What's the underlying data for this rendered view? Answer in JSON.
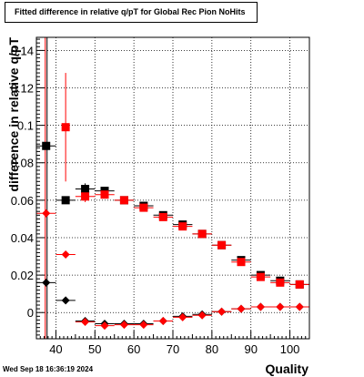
{
  "title": "Fitted difference in relative q/pT for Global Rec Pion NoHits",
  "datestamp": "Wed Sep 18 16:36:19 2024",
  "chart_data": {
    "type": "scatter",
    "title": "Fitted difference in relative q/pT for Global Rec Pion NoHits",
    "xlabel": "Quality",
    "ylabel": "difference in relative q/pT",
    "xlim": [
      35,
      105
    ],
    "ylim": [
      -0.014,
      0.147
    ],
    "x_ticks": [
      40,
      50,
      60,
      70,
      80,
      90,
      100
    ],
    "y_ticks": [
      0,
      0.02,
      0.04,
      0.06,
      0.08,
      0.1,
      0.12,
      0.14
    ],
    "grid": true,
    "series": [
      {
        "marker": "square",
        "color": "#000000",
        "points": [
          {
            "x": 37.5,
            "y": 0.089,
            "xerr": 2.5,
            "yerr": 0.0
          },
          {
            "x": 42.5,
            "y": 0.06,
            "xerr": 2.5,
            "yerr": 0.0
          },
          {
            "x": 47.5,
            "y": 0.066,
            "xerr": 2.5,
            "yerr": 0.003
          },
          {
            "x": 52.5,
            "y": 0.065,
            "xerr": 2.5,
            "yerr": 0.002
          },
          {
            "x": 57.5,
            "y": 0.06,
            "xerr": 2.5,
            "yerr": 0.001
          },
          {
            "x": 62.5,
            "y": 0.057,
            "xerr": 2.5,
            "yerr": 0.001
          },
          {
            "x": 67.5,
            "y": 0.052,
            "xerr": 2.5,
            "yerr": 0.001
          },
          {
            "x": 72.5,
            "y": 0.047,
            "xerr": 2.5,
            "yerr": 0.001
          },
          {
            "x": 77.5,
            "y": 0.042,
            "xerr": 2.5,
            "yerr": 0.001
          },
          {
            "x": 82.5,
            "y": 0.036,
            "xerr": 2.5,
            "yerr": 0.001
          },
          {
            "x": 87.5,
            "y": 0.028,
            "xerr": 2.5,
            "yerr": 0.001
          },
          {
            "x": 92.5,
            "y": 0.02,
            "xerr": 2.5,
            "yerr": 0.001
          },
          {
            "x": 97.5,
            "y": 0.017,
            "xerr": 2.5,
            "yerr": 0.001
          },
          {
            "x": 102.5,
            "y": 0.015,
            "xerr": 2.5,
            "yerr": 0.001
          }
        ]
      },
      {
        "marker": "square",
        "color": "#ff0000",
        "points": [
          {
            "x": 42.5,
            "y": 0.099,
            "xerr": 0.0,
            "yerr": 0.029
          },
          {
            "x": 47.5,
            "y": 0.062,
            "xerr": 2.5,
            "yerr": 0.003
          },
          {
            "x": 52.5,
            "y": 0.063,
            "xerr": 2.5,
            "yerr": 0.002
          },
          {
            "x": 57.5,
            "y": 0.06,
            "xerr": 2.5,
            "yerr": 0.001
          },
          {
            "x": 62.5,
            "y": 0.056,
            "xerr": 2.5,
            "yerr": 0.001
          },
          {
            "x": 67.5,
            "y": 0.051,
            "xerr": 2.5,
            "yerr": 0.001
          },
          {
            "x": 72.5,
            "y": 0.046,
            "xerr": 2.5,
            "yerr": 0.001
          },
          {
            "x": 77.5,
            "y": 0.042,
            "xerr": 2.5,
            "yerr": 0.001
          },
          {
            "x": 82.5,
            "y": 0.036,
            "xerr": 2.5,
            "yerr": 0.001
          },
          {
            "x": 87.5,
            "y": 0.027,
            "xerr": 2.5,
            "yerr": 0.001
          },
          {
            "x": 92.5,
            "y": 0.019,
            "xerr": 2.5,
            "yerr": 0.001
          },
          {
            "x": 97.5,
            "y": 0.016,
            "xerr": 2.5,
            "yerr": 0.001
          },
          {
            "x": 102.5,
            "y": 0.015,
            "xerr": 2.5,
            "yerr": 0.001
          }
        ]
      },
      {
        "marker": "diamond",
        "color": "#000000",
        "points": [
          {
            "x": 37.5,
            "y": 0.016,
            "xerr": 2.5,
            "yerr": 0.0
          },
          {
            "x": 42.5,
            "y": 0.0065,
            "xerr": 2.5,
            "yerr": 0.0
          },
          {
            "x": 47.5,
            "y": -0.0045,
            "xerr": 2.5,
            "yerr": 0.0
          },
          {
            "x": 52.5,
            "y": -0.006,
            "xerr": 2.5,
            "yerr": 0.0
          },
          {
            "x": 57.5,
            "y": -0.006,
            "xerr": 2.5,
            "yerr": 0.0
          },
          {
            "x": 62.5,
            "y": -0.006,
            "xerr": 2.5,
            "yerr": 0.0
          },
          {
            "x": 67.5,
            "y": -0.0045,
            "xerr": 2.5,
            "yerr": 0.0
          },
          {
            "x": 72.5,
            "y": -0.002,
            "xerr": 2.5,
            "yerr": 0.0
          },
          {
            "x": 77.5,
            "y": -0.001,
            "xerr": 2.5,
            "yerr": 0.0
          },
          {
            "x": 82.5,
            "y": 0.0005,
            "xerr": 2.5,
            "yerr": 0.0
          },
          {
            "x": 87.5,
            "y": 0.002,
            "xerr": 2.5,
            "yerr": 0.0
          },
          {
            "x": 92.5,
            "y": 0.003,
            "xerr": 2.5,
            "yerr": 0.0
          },
          {
            "x": 97.5,
            "y": 0.003,
            "xerr": 2.5,
            "yerr": 0.0
          },
          {
            "x": 102.5,
            "y": 0.003,
            "xerr": 2.5,
            "yerr": 0.0
          }
        ]
      },
      {
        "marker": "diamond",
        "color": "#ff0000",
        "points": [
          {
            "x": 37.5,
            "y": 0.053,
            "xerr": 2.5,
            "yerr": 0.0
          },
          {
            "x": 42.5,
            "y": 0.031,
            "xerr": 2.5,
            "yerr": 0.0
          },
          {
            "x": 47.5,
            "y": -0.005,
            "xerr": 2.5,
            "yerr": 0.0
          },
          {
            "x": 52.5,
            "y": -0.007,
            "xerr": 2.5,
            "yerr": 0.0
          },
          {
            "x": 57.5,
            "y": -0.0065,
            "xerr": 2.5,
            "yerr": 0.0
          },
          {
            "x": 62.5,
            "y": -0.0065,
            "xerr": 2.5,
            "yerr": 0.0
          },
          {
            "x": 67.5,
            "y": -0.0045,
            "xerr": 2.5,
            "yerr": 0.0
          },
          {
            "x": 72.5,
            "y": -0.0025,
            "xerr": 2.5,
            "yerr": 0.0
          },
          {
            "x": 77.5,
            "y": -0.0015,
            "xerr": 2.5,
            "yerr": 0.0
          },
          {
            "x": 82.5,
            "y": 0.0005,
            "xerr": 2.5,
            "yerr": 0.0
          },
          {
            "x": 87.5,
            "y": 0.002,
            "xerr": 2.5,
            "yerr": 0.0
          },
          {
            "x": 92.5,
            "y": 0.003,
            "xerr": 2.5,
            "yerr": 0.0
          },
          {
            "x": 97.5,
            "y": 0.003,
            "xerr": 2.5,
            "yerr": 0.0
          },
          {
            "x": 102.5,
            "y": 0.003,
            "xerr": 2.5,
            "yerr": 0.0
          }
        ]
      }
    ],
    "vertical_error_lines": [
      {
        "x": 37.5,
        "color": "#ff0000",
        "ylow": -0.014,
        "yhigh": 0.147
      },
      {
        "x": 37.5,
        "color": "#000000",
        "ylow": -0.014,
        "yhigh": 0.147
      }
    ]
  }
}
